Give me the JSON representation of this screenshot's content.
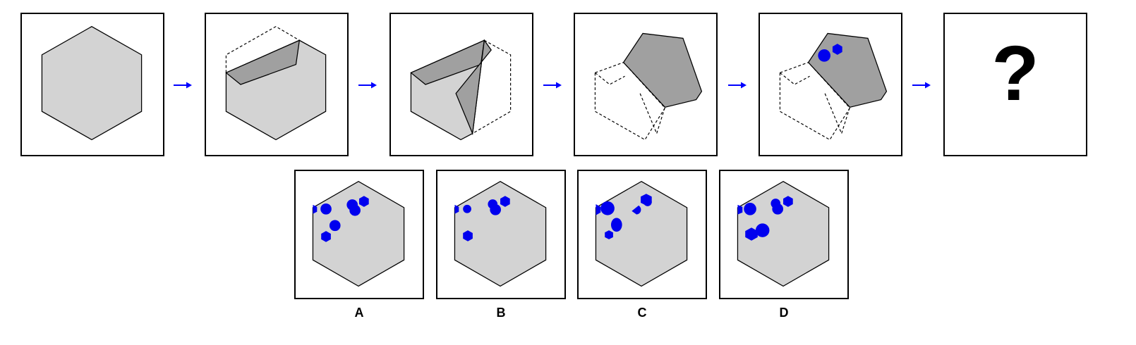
{
  "puzzle": {
    "question_mark": "?",
    "colors": {
      "paper": "#d3d3d3",
      "paper_fold": "#a0a0a0",
      "punch_hole": "#0000ee",
      "arrow": "#0000ff",
      "outline": "#000000",
      "background": "#ffffff"
    }
  },
  "options": [
    {
      "label": "A"
    },
    {
      "label": "B"
    },
    {
      "label": "C"
    },
    {
      "label": "D"
    }
  ]
}
